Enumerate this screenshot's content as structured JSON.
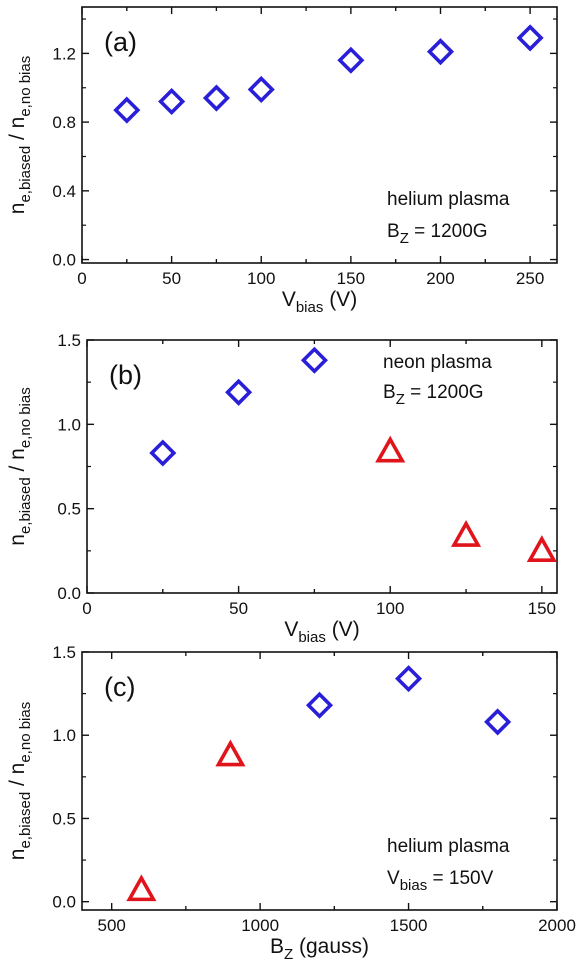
{
  "chart_data": [
    {
      "type": "scatter",
      "panel_label": "(a)",
      "xlabel": {
        "main": "V",
        "sub": "bias",
        "unit": " (V)"
      },
      "ylabel": {
        "main": "n",
        "sub": "e,biased",
        "mid": " / n",
        "sub2": "e,no bias"
      },
      "xlim": [
        0,
        265
      ],
      "ylim": [
        -0.02,
        1.47
      ],
      "xticks": [
        "0",
        "50",
        "100",
        "150",
        "200",
        "250"
      ],
      "xtick_values": [
        0,
        50,
        100,
        150,
        200,
        250
      ],
      "yticks": [
        "0.0",
        "0.4",
        "0.8",
        "1.2"
      ],
      "ytick_values": [
        0.0,
        0.4,
        0.8,
        1.2
      ],
      "annotation": {
        "line1": "helium plasma",
        "line2_main": "B",
        "line2_sub": "Z",
        "line2_rest": " = 1200G"
      },
      "series": [
        {
          "marker": "diamond",
          "color": "#2a1fd9",
          "x": [
            25,
            50,
            75,
            100,
            150,
            200,
            250
          ],
          "y": [
            0.87,
            0.92,
            0.94,
            0.99,
            1.16,
            1.21,
            1.29
          ]
        }
      ]
    },
    {
      "type": "scatter",
      "panel_label": "(b)",
      "xlabel": {
        "main": "V",
        "sub": "bias",
        "unit": " (V)"
      },
      "ylabel": {
        "main": "n",
        "sub": "e,biased",
        "mid": " / n",
        "sub2": "e,no bias"
      },
      "xlim": [
        0,
        155
      ],
      "ylim": [
        0.0,
        1.5
      ],
      "xticks": [
        "0",
        "50",
        "100",
        "150"
      ],
      "xtick_values": [
        0,
        50,
        100,
        150
      ],
      "yticks": [
        "0.0",
        "0.5",
        "1.0",
        "1.5"
      ],
      "ytick_values": [
        0.0,
        0.5,
        1.0,
        1.5
      ],
      "annotation": {
        "line1": "neon plasma",
        "line2_main": "B",
        "line2_sub": "Z",
        "line2_rest": " = 1200G"
      },
      "series": [
        {
          "marker": "diamond",
          "color": "#2a1fd9",
          "x": [
            25,
            50,
            75
          ],
          "y": [
            0.83,
            1.19,
            1.38
          ]
        },
        {
          "marker": "triangle",
          "color": "#e0141a",
          "x": [
            100,
            125,
            150
          ],
          "y": [
            0.84,
            0.34,
            0.25
          ]
        }
      ]
    },
    {
      "type": "scatter",
      "panel_label": "(c)",
      "xlabel": {
        "main": "B",
        "sub": "Z",
        "unit": " (gauss)"
      },
      "ylabel": {
        "main": "n",
        "sub": "e,biased",
        "mid": " / n",
        "sub2": "e,no bias"
      },
      "xlim": [
        400,
        2000
      ],
      "ylim": [
        -0.05,
        1.5
      ],
      "xticks": [
        "500",
        "1000",
        "1500",
        "2000"
      ],
      "xtick_values": [
        500,
        1000,
        1500,
        2000
      ],
      "yticks": [
        "0.0",
        "0.5",
        "1.0",
        "1.5"
      ],
      "ytick_values": [
        0.0,
        0.5,
        1.0,
        1.5
      ],
      "annotation": {
        "line1": "helium plasma",
        "line2_main": "V",
        "line2_sub": "bias",
        "line2_rest": " = 150V"
      },
      "series": [
        {
          "marker": "triangle",
          "color": "#e0141a",
          "x": [
            600,
            900
          ],
          "y": [
            0.07,
            0.88
          ]
        },
        {
          "marker": "diamond",
          "color": "#2a1fd9",
          "x": [
            1200,
            1500,
            1800
          ],
          "y": [
            1.18,
            1.34,
            1.08
          ]
        }
      ]
    }
  ]
}
